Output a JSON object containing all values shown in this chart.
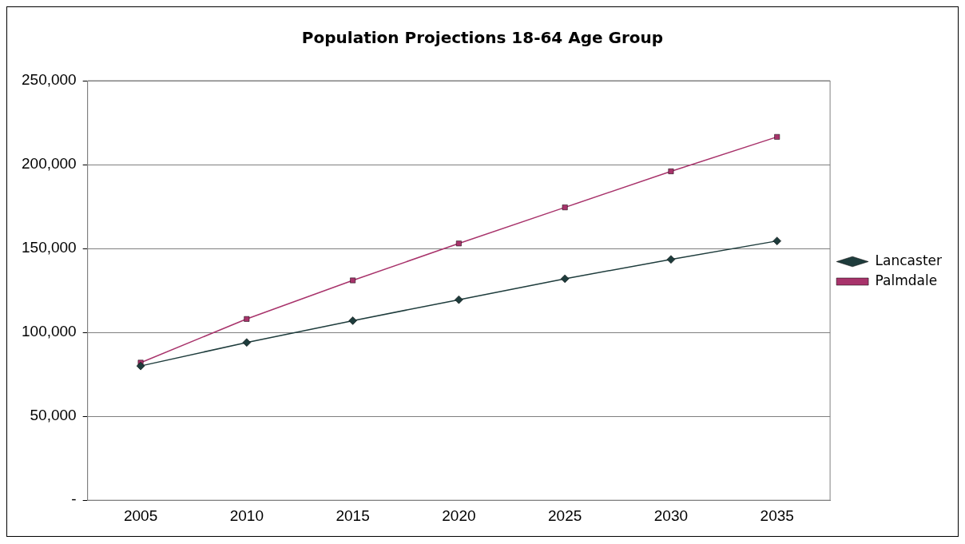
{
  "chart_data": {
    "type": "line",
    "title": "Population Projections 18-64 Age Group",
    "categories": [
      "2005",
      "2010",
      "2015",
      "2020",
      "2025",
      "2030",
      "2035"
    ],
    "series": [
      {
        "name": "Lancaster",
        "color": "#1e3c3c",
        "marker": "diamond",
        "values": [
          80000,
          94000,
          107000,
          119500,
          132000,
          143500,
          154500
        ]
      },
      {
        "name": "Palmdale",
        "color": "#a8336b",
        "marker": "square",
        "values": [
          82000,
          108000,
          131000,
          153000,
          174500,
          196000,
          216500
        ]
      }
    ],
    "ylim": [
      0,
      250000
    ],
    "yticks": [
      {
        "value": 0,
        "label": "-"
      },
      {
        "value": 50000,
        "label": "50,000"
      },
      {
        "value": 100000,
        "label": "100,000"
      },
      {
        "value": 150000,
        "label": "150,000"
      },
      {
        "value": 200000,
        "label": "200,000"
      },
      {
        "value": 250000,
        "label": "250,000"
      }
    ],
    "grid": "y",
    "legend": "right",
    "line_style": "solid"
  }
}
